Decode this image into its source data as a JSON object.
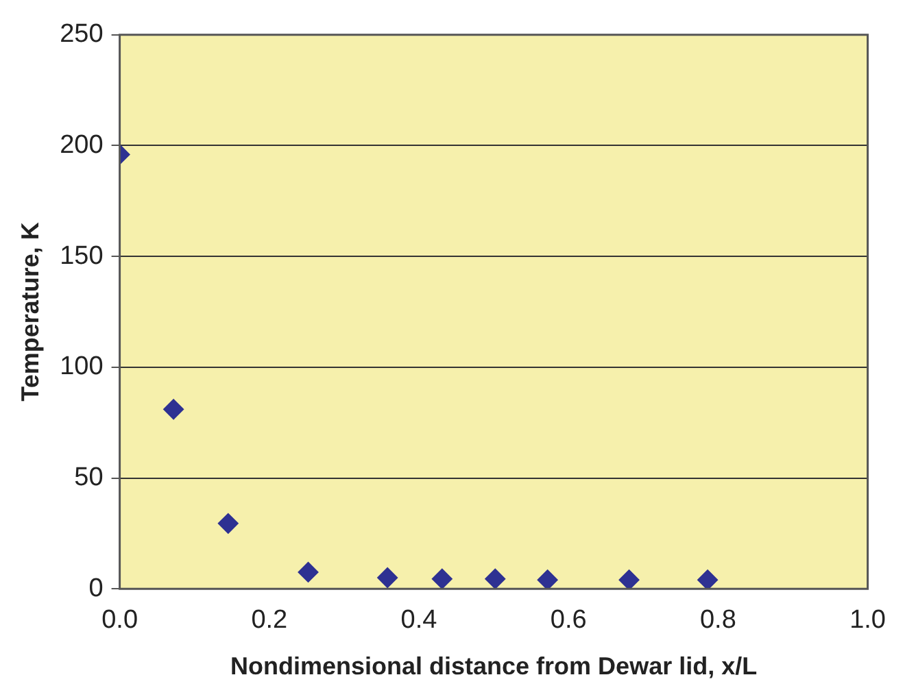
{
  "chart_data": {
    "type": "scatter",
    "xlabel": "Nondimensional distance from Dewar lid, x/L",
    "ylabel": "Temperature, K",
    "x": [
      0,
      0.072,
      0.145,
      0.252,
      0.358,
      0.431,
      0.502,
      0.572,
      0.681,
      0.786
    ],
    "series": [
      {
        "color": "#2e3192",
        "values": [
          196,
          81,
          29.5,
          7.5,
          5,
          4.5,
          4.5,
          4,
          4,
          4
        ]
      }
    ],
    "xlim": [
      0,
      1
    ],
    "xticks": [
      {
        "value": 0,
        "label": "0.0"
      },
      {
        "value": 0.2,
        "label": "0.2"
      },
      {
        "value": 0.4,
        "label": "0.4"
      },
      {
        "value": 0.6,
        "label": "0.6"
      },
      {
        "value": 0.8,
        "label": "0.8"
      },
      {
        "value": 1,
        "label": "1.0"
      }
    ],
    "ylim": [
      0,
      250
    ],
    "yticks": [
      0,
      50,
      100,
      150,
      200,
      250
    ],
    "grid": "y",
    "legend": false,
    "marker": "diamond"
  }
}
